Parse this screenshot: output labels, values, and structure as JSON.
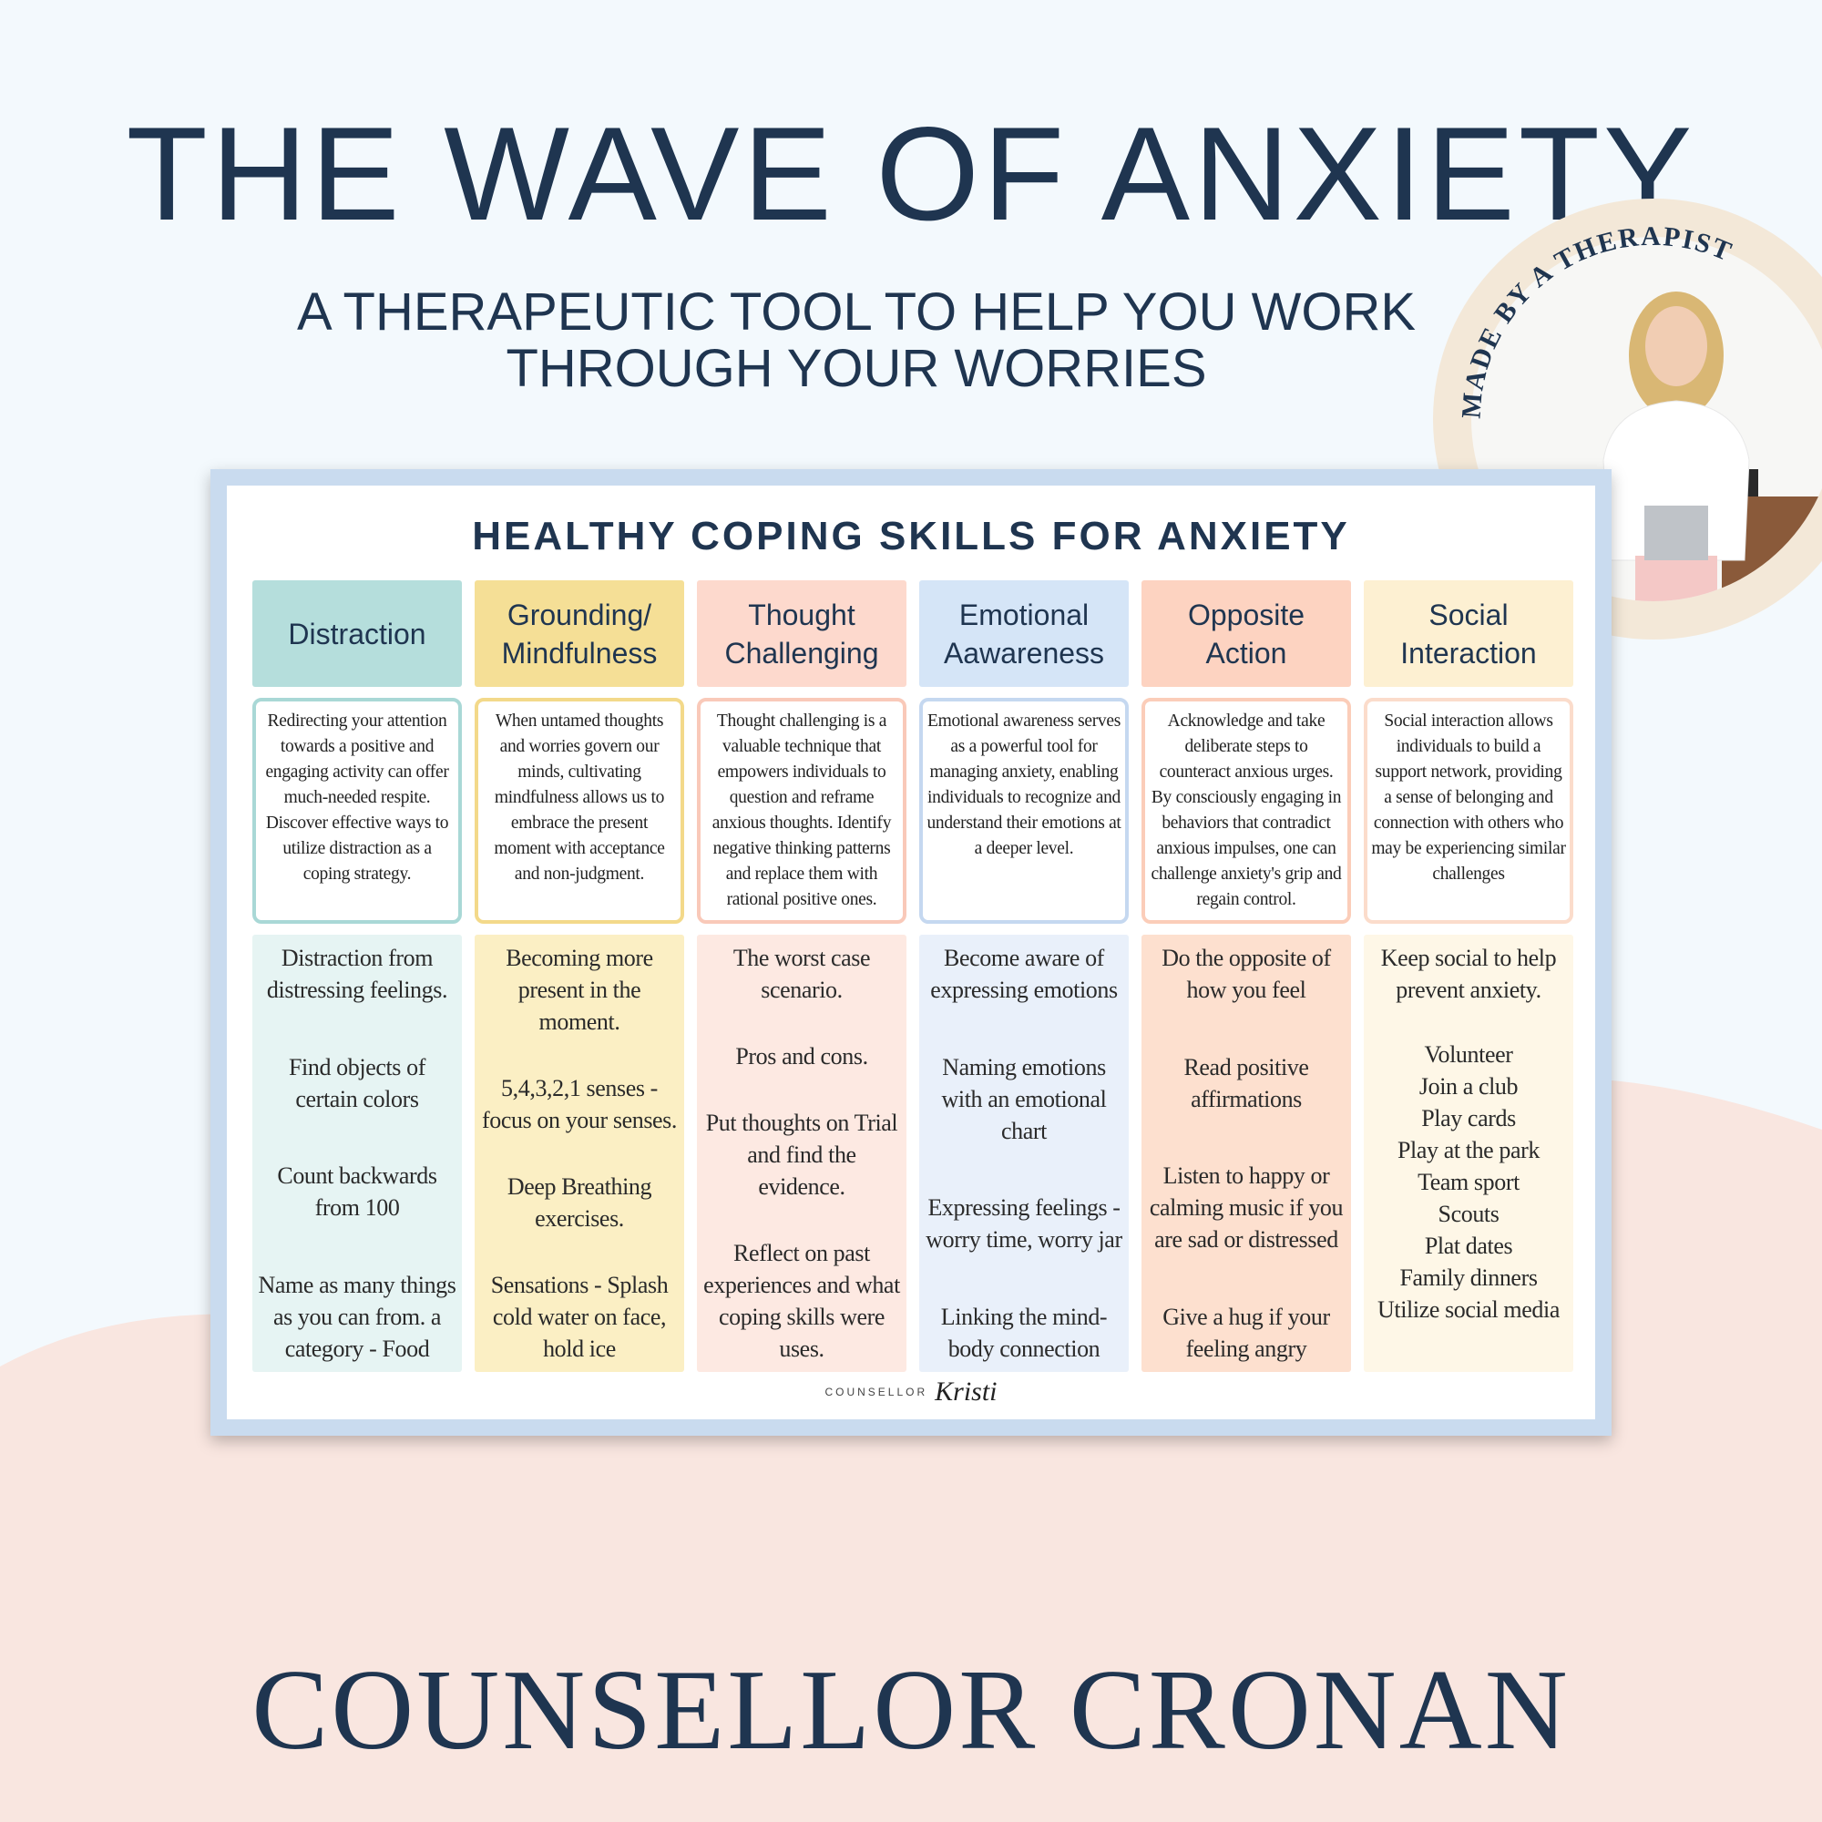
{
  "title": "THE WAVE OF ANXIETY",
  "subtitle": "A THERAPEUTIC TOOL TO HELP YOU WORK THROUGH YOUR WORRIES",
  "badge": {
    "text": "MADE BY A THERAPIST",
    "ring_color": "#f3e8d8"
  },
  "brand": "COUNSELLOR CRONAN",
  "colors": {
    "navy": "#1f3550",
    "background": "#f3f9fd",
    "pink": "#f9e6e0",
    "frame": "#c9dbef"
  },
  "sheet": {
    "title": "HEALTHY COPING SKILLS FOR ANXIETY",
    "signature_label": "COUNSELLOR",
    "signature_script": "Kristi",
    "columns": [
      {
        "header": "Distraction",
        "head_color": "#b5dedc",
        "border_color": "#a9d8d6",
        "panel_color": "#e6f4f3",
        "description": "Redirecting your attention towards a positive and engaging activity can offer much-needed respite. Discover effective ways to utilize distraction as a coping strategy.",
        "items": [
          "Distraction from distressing feelings.",
          "Find objects of certain colors",
          "Count backwards from 100",
          "Name as many things as you can from. a category - Food"
        ]
      },
      {
        "header": "Grounding/\nMindfulness",
        "head_color": "#f5df96",
        "border_color": "#f3d98a",
        "panel_color": "#fbefc4",
        "description": "When untamed thoughts and worries govern our minds, cultivating mindfulness allows us to embrace the present moment with acceptance and non-judgment.",
        "items": [
          "Becoming more present in the moment.",
          "5,4,3,2,1 senses - focus on your senses.",
          "Deep Breathing exercises.",
          "Sensations - Splash cold water on face, hold ice"
        ]
      },
      {
        "header": "Thought\nChallenging",
        "head_color": "#fdd9cd",
        "border_color": "#f9c9b9",
        "panel_color": "#fde9e2",
        "description": "Thought challenging is a valuable technique that empowers individuals to question and reframe anxious thoughts. Identify negative thinking patterns and replace them with rational positive ones.",
        "items": [
          "The worst case scenario.",
          "Pros and cons.",
          "Put thoughts on Trial and find the evidence.",
          "Reflect on past experiences and what coping skills were uses."
        ]
      },
      {
        "header": "Emotional\nAawareness",
        "head_color": "#d5e5f7",
        "border_color": "#c5d8f0",
        "panel_color": "#e9f0fa",
        "description": "Emotional awareness serves as a powerful tool for managing anxiety, enabling individuals to recognize and understand their emotions at a deeper level.",
        "items": [
          "Become aware of expressing emotions",
          "Naming emotions with an emotional chart",
          "Expressing feelings - worry time, worry jar",
          "Linking the mind-body connection"
        ]
      },
      {
        "header": "Opposite\nAction",
        "head_color": "#fdd3c1",
        "border_color": "#fbcdb9",
        "panel_color": "#fde0cf",
        "description": "Acknowledge and take deliberate steps to counteract anxious urges. By consciously engaging in behaviors that contradict anxious impulses, one can challenge anxiety's grip and regain control.",
        "items": [
          "Do the opposite of how you feel",
          "Read positive affirmations",
          "Listen to happy or calming music if you are sad or distressed",
          "Give a hug if your feeling angry"
        ]
      },
      {
        "header": "Social\nInteraction",
        "head_color": "#fdf0d2",
        "border_color": "#fbdccb",
        "panel_color": "#fef7e7",
        "description": "Social interaction allows individuals to build a support network, providing a sense of belonging and connection with others who may be experiencing similar challenges",
        "items": [
          "Keep social to help prevent anxiety."
        ],
        "list": [
          "Volunteer",
          "Join a club",
          "Play cards",
          "Play at the park",
          "Team sport",
          "Scouts",
          "Plat dates",
          "Family dinners",
          "Utilize social media"
        ]
      }
    ]
  }
}
